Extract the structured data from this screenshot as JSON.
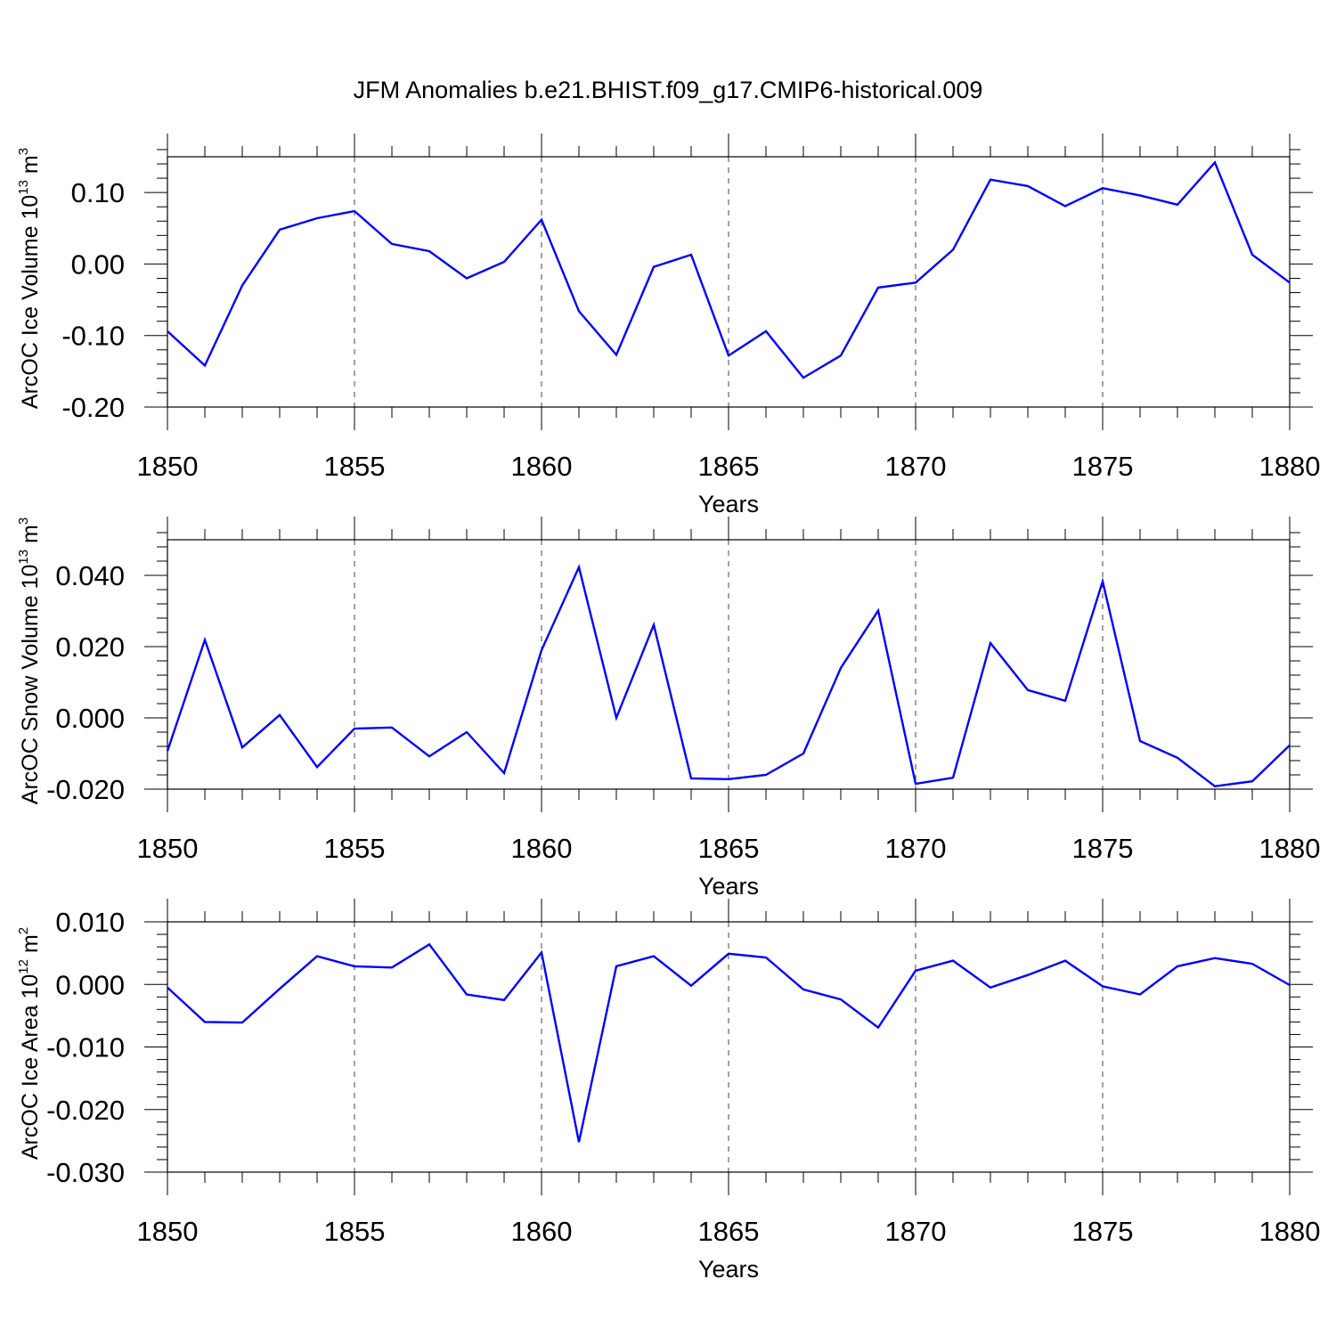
{
  "figure": {
    "title": "JFM Anomalies b.e21.BHIST.f09_g17.CMIP6-historical.009",
    "line_color": "#0000ff"
  },
  "chart_data": [
    {
      "type": "line",
      "title": "JFM Anomalies b.e21.BHIST.f09_g17.CMIP6-historical.009",
      "xlabel": "Years",
      "ylabel_base": "ArcOC Ice Volume 10",
      "ylabel_exp": "13",
      "ylabel_unit": " m",
      "ylabel_unit_exp": "3",
      "xlim": [
        1850,
        1880
      ],
      "ylim": [
        -0.2,
        0.15
      ],
      "x_ticks": [
        1850,
        1855,
        1860,
        1865,
        1870,
        1875,
        1880
      ],
      "x_tick_labels": [
        "1850",
        "1855",
        "1860",
        "1865",
        "1870",
        "1875",
        "1880"
      ],
      "y_ticks": [
        -0.2,
        -0.1,
        0.0,
        0.1
      ],
      "y_tick_labels": [
        "-0.20",
        "-0.10",
        "0.00",
        "0.10"
      ],
      "y_minor_step": 0.02,
      "grid": "dashed vertical at major x ticks",
      "series": [
        {
          "name": "ArcOC Ice Volume",
          "color": "#0000ff",
          "x": [
            1850,
            1851,
            1852,
            1853,
            1854,
            1855,
            1856,
            1857,
            1858,
            1859,
            1860,
            1861,
            1862,
            1863,
            1864,
            1865,
            1866,
            1867,
            1868,
            1869,
            1870,
            1871,
            1872,
            1873,
            1874,
            1875,
            1876,
            1877,
            1878,
            1879,
            1880
          ],
          "values": [
            -0.094,
            -0.142,
            -0.03,
            0.048,
            0.064,
            0.074,
            0.028,
            0.018,
            -0.02,
            0.003,
            0.062,
            -0.066,
            -0.127,
            -0.004,
            0.013,
            -0.128,
            -0.094,
            -0.159,
            -0.128,
            -0.033,
            -0.026,
            0.02,
            0.118,
            0.109,
            0.081,
            0.106,
            0.096,
            0.083,
            0.142,
            0.013,
            -0.026
          ]
        }
      ]
    },
    {
      "type": "line",
      "xlabel": "Years",
      "ylabel_base": "ArcOC Snow Volume 10",
      "ylabel_exp": "13",
      "ylabel_unit": " m",
      "ylabel_unit_exp": "3",
      "xlim": [
        1850,
        1880
      ],
      "ylim": [
        -0.02,
        0.05
      ],
      "x_ticks": [
        1850,
        1855,
        1860,
        1865,
        1870,
        1875,
        1880
      ],
      "x_tick_labels": [
        "1850",
        "1855",
        "1860",
        "1865",
        "1870",
        "1875",
        "1880"
      ],
      "y_ticks": [
        -0.02,
        0.0,
        0.02,
        0.04
      ],
      "y_tick_labels": [
        "-0.020",
        "0.000",
        "0.020",
        "0.040"
      ],
      "y_minor_step": 0.004,
      "grid": "dashed vertical at major x ticks",
      "series": [
        {
          "name": "ArcOC Snow Volume",
          "color": "#0000ff",
          "x": [
            1850,
            1851,
            1852,
            1853,
            1854,
            1855,
            1856,
            1857,
            1858,
            1859,
            1860,
            1861,
            1862,
            1863,
            1864,
            1865,
            1866,
            1867,
            1868,
            1869,
            1870,
            1871,
            1872,
            1873,
            1874,
            1875,
            1876,
            1877,
            1878,
            1879,
            1880
          ],
          "values": [
            -0.0093,
            0.0219,
            -0.0083,
            0.0008,
            -0.0138,
            -0.003,
            -0.0027,
            -0.0108,
            -0.004,
            -0.0155,
            0.019,
            0.0423,
            0.0,
            0.0261,
            -0.017,
            -0.0172,
            -0.016,
            -0.01,
            0.014,
            0.0301,
            -0.0185,
            -0.0168,
            0.021,
            0.0078,
            0.0048,
            0.0383,
            -0.0065,
            -0.0112,
            -0.0192,
            -0.0178,
            -0.0077
          ]
        }
      ]
    },
    {
      "type": "line",
      "xlabel": "Years",
      "ylabel_base": "ArcOC Ice Area 10",
      "ylabel_exp": "12",
      "ylabel_unit": " m",
      "ylabel_unit_exp": "2",
      "xlim": [
        1850,
        1880
      ],
      "ylim": [
        -0.03,
        0.01
      ],
      "x_ticks": [
        1850,
        1855,
        1860,
        1865,
        1870,
        1875,
        1880
      ],
      "x_tick_labels": [
        "1850",
        "1855",
        "1860",
        "1865",
        "1870",
        "1875",
        "1880"
      ],
      "y_ticks": [
        -0.03,
        -0.02,
        -0.01,
        0.0,
        0.01
      ],
      "y_tick_labels": [
        "-0.030",
        "-0.020",
        "-0.010",
        "0.000",
        "0.010"
      ],
      "y_minor_step": 0.002,
      "grid": "dashed vertical at major x ticks",
      "series": [
        {
          "name": "ArcOC Ice Area",
          "color": "#0000ff",
          "x": [
            1850,
            1851,
            1852,
            1853,
            1854,
            1855,
            1856,
            1857,
            1858,
            1859,
            1860,
            1861,
            1862,
            1863,
            1864,
            1865,
            1866,
            1867,
            1868,
            1869,
            1870,
            1871,
            1872,
            1873,
            1874,
            1875,
            1876,
            1877,
            1878,
            1879,
            1880
          ],
          "values": [
            -0.0005,
            -0.006,
            -0.0061,
            -0.0007,
            0.0045,
            0.0029,
            0.0027,
            0.0064,
            -0.0016,
            -0.0025,
            0.0051,
            -0.0252,
            0.0029,
            0.0045,
            -0.0002,
            0.0049,
            0.0043,
            -0.0008,
            -0.0024,
            -0.0069,
            0.0022,
            0.0038,
            -0.0005,
            0.0015,
            0.0038,
            -0.0003,
            -0.0016,
            0.0029,
            0.0042,
            0.0033,
            -0.0001
          ]
        }
      ]
    }
  ]
}
